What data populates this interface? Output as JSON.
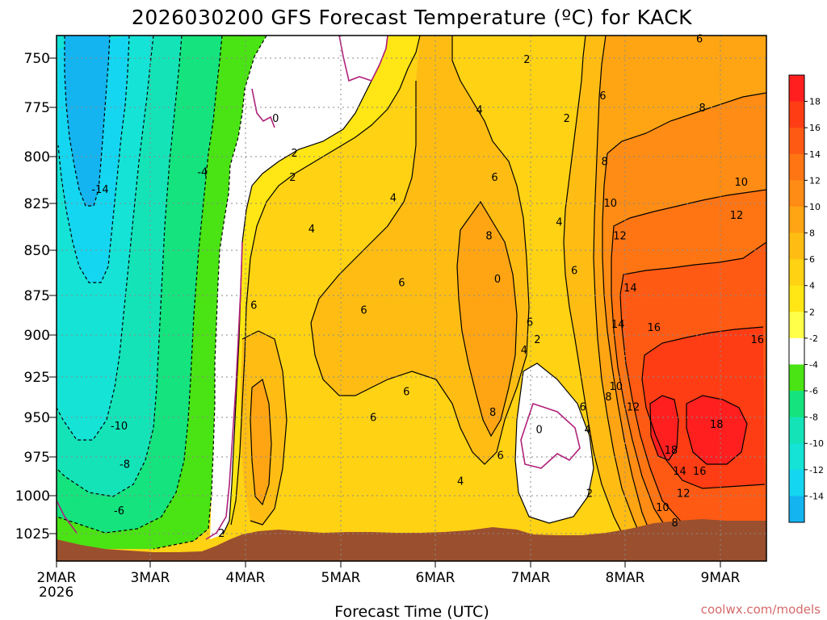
{
  "chart_data": {
    "type": "heatmap",
    "title": "2026030200 GFS Forecast Temperature (ºC) for KACK",
    "xlabel": "Forecast Time (UTC)",
    "ylabel": "",
    "x_ticks": [
      "2MAR",
      "3MAR",
      "4MAR",
      "5MAR",
      "6MAR",
      "7MAR",
      "8MAR",
      "9MAR"
    ],
    "x_year_label": "2026",
    "x_range_days": [
      0,
      7.5
    ],
    "y_ticks": [
      750,
      775,
      800,
      825,
      850,
      875,
      900,
      925,
      950,
      975,
      1000,
      1025
    ],
    "y_tick_labels": [
      "750",
      "775",
      "800",
      "825",
      "850",
      "875",
      "900",
      "925",
      "950",
      "975",
      "1000",
      "1025"
    ],
    "y_range_hpa": [
      737,
      1049
    ],
    "colorbar": {
      "labels": [
        "18",
        "16",
        "14",
        "12",
        "10",
        "8",
        "6",
        "4",
        "2",
        "-2",
        "-4",
        "-6",
        "-8",
        "-10",
        "-12",
        "-14"
      ],
      "colors": [
        "#ff1f1f",
        "#ff3d14",
        "#ff5a14",
        "#ff7514",
        "#ff8c14",
        "#ffa514",
        "#ffbd14",
        "#ffd214",
        "#ffe614",
        "#ffff4a",
        "#ffffff",
        "#4ae314",
        "#14e37e",
        "#14e3b8",
        "#14e3d6",
        "#14d6f0",
        "#14b4f0"
      ]
    },
    "contour_labels": [
      {
        "text": "-14",
        "day": 0.46,
        "p": 826
      },
      {
        "text": "-4",
        "day": 1.54,
        "p": 816
      },
      {
        "text": "-10",
        "day": 0.66,
        "p": 963
      },
      {
        "text": "-8",
        "day": 0.72,
        "p": 985
      },
      {
        "text": "-6",
        "day": 0.66,
        "p": 1012
      },
      {
        "text": "0",
        "day": 2.31,
        "p": 785
      },
      {
        "text": "2",
        "day": 2.51,
        "p": 805
      },
      {
        "text": "2",
        "day": 2.49,
        "p": 819
      },
      {
        "text": "2",
        "day": 1.74,
        "p": 1025
      },
      {
        "text": "4",
        "day": 3.55,
        "p": 831
      },
      {
        "text": "4",
        "day": 2.69,
        "p": 849
      },
      {
        "text": "4",
        "day": 4.46,
        "p": 780
      },
      {
        "text": "6",
        "day": 2.08,
        "p": 893
      },
      {
        "text": "6",
        "day": 3.24,
        "p": 896
      },
      {
        "text": "6",
        "day": 3.64,
        "p": 880
      },
      {
        "text": "6",
        "day": 3.69,
        "p": 943
      },
      {
        "text": "6",
        "day": 3.34,
        "p": 958
      },
      {
        "text": "6",
        "day": 4.62,
        "p": 819
      },
      {
        "text": "8",
        "day": 4.56,
        "p": 853
      },
      {
        "text": "0",
        "day": 4.65,
        "p": 878
      },
      {
        "text": "8",
        "day": 4.6,
        "p": 955
      },
      {
        "text": "6",
        "day": 4.68,
        "p": 980
      },
      {
        "text": "4",
        "day": 4.26,
        "p": 995
      },
      {
        "text": "6",
        "day": 4.99,
        "p": 903
      },
      {
        "text": "4",
        "day": 4.93,
        "p": 919
      },
      {
        "text": "2",
        "day": 5.07,
        "p": 913
      },
      {
        "text": "0",
        "day": 5.09,
        "p": 965
      },
      {
        "text": "2",
        "day": 5.62,
        "p": 1002
      },
      {
        "text": "4",
        "day": 5.6,
        "p": 965
      },
      {
        "text": "6",
        "day": 5.55,
        "p": 952
      },
      {
        "text": "4",
        "day": 5.3,
        "p": 845
      },
      {
        "text": "6",
        "day": 5.46,
        "p": 873
      },
      {
        "text": "2",
        "day": 5.38,
        "p": 785
      },
      {
        "text": "2",
        "day": 4.96,
        "p": 751
      },
      {
        "text": "6",
        "day": 5.76,
        "p": 772
      },
      {
        "text": "8",
        "day": 5.78,
        "p": 810
      },
      {
        "text": "10",
        "day": 5.84,
        "p": 834
      },
      {
        "text": "12",
        "day": 5.94,
        "p": 853
      },
      {
        "text": "14",
        "day": 6.05,
        "p": 883
      },
      {
        "text": "14",
        "day": 5.92,
        "p": 904
      },
      {
        "text": "16",
        "day": 6.3,
        "p": 906
      },
      {
        "text": "16",
        "day": 7.39,
        "p": 913
      },
      {
        "text": "8",
        "day": 5.82,
        "p": 946
      },
      {
        "text": "10",
        "day": 5.9,
        "p": 940
      },
      {
        "text": "12",
        "day": 6.08,
        "p": 952
      },
      {
        "text": "18",
        "day": 6.48,
        "p": 977
      },
      {
        "text": "18",
        "day": 6.96,
        "p": 962
      },
      {
        "text": "14",
        "day": 6.57,
        "p": 989
      },
      {
        "text": "16",
        "day": 6.78,
        "p": 989
      },
      {
        "text": "12",
        "day": 6.61,
        "p": 1002
      },
      {
        "text": "10",
        "day": 6.39,
        "p": 1010
      },
      {
        "text": "8",
        "day": 6.52,
        "p": 1019
      },
      {
        "text": "8",
        "day": 6.81,
        "p": 779
      },
      {
        "text": "10",
        "day": 7.22,
        "p": 822
      },
      {
        "text": "12",
        "day": 7.17,
        "p": 841
      },
      {
        "text": "6",
        "day": 6.78,
        "p": 739
      }
    ],
    "credit": "coolwx.com/models"
  }
}
